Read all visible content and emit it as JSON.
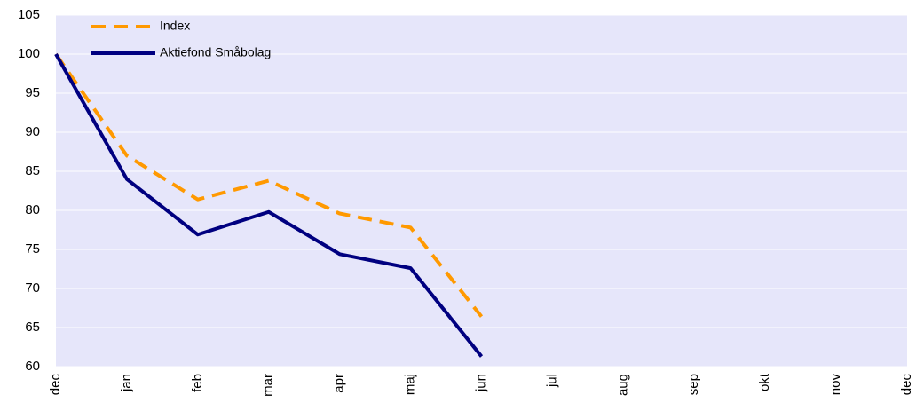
{
  "chart_data": {
    "type": "line",
    "categories": [
      "dec",
      "jan",
      "feb",
      "mar",
      "apr",
      "maj",
      "jun",
      "jul",
      "aug",
      "sep",
      "okt",
      "nov",
      "dec"
    ],
    "series": [
      {
        "name": "Index",
        "color": "#ff9900",
        "dash": true,
        "values": [
          100,
          87,
          81.4,
          83.8,
          79.6,
          77.8,
          66.4,
          null,
          null,
          null,
          null,
          null,
          null
        ]
      },
      {
        "name": "Aktiefond Småbolag",
        "color": "#000080",
        "dash": false,
        "values": [
          100,
          84,
          76.9,
          79.8,
          74.4,
          72.6,
          61.3,
          null,
          null,
          null,
          null,
          null,
          null
        ]
      }
    ],
    "ylim": [
      60,
      105
    ],
    "yticks": [
      60,
      65,
      70,
      75,
      80,
      85,
      90,
      95,
      100,
      105
    ],
    "grid": true,
    "background": "#e6e6fa"
  }
}
